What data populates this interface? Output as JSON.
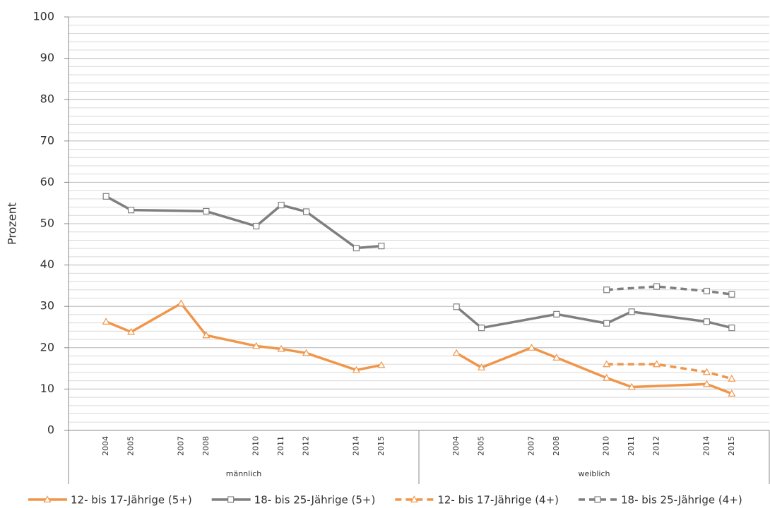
{
  "chart_data": {
    "type": "line",
    "ylabel": "Prozent",
    "ylim": [
      0,
      100
    ],
    "yticks": [
      0,
      10,
      20,
      30,
      40,
      50,
      60,
      70,
      80,
      90,
      100
    ],
    "minor_grid_step": 2,
    "grid": true,
    "legend": "bottom",
    "groups": [
      {
        "label": "männlich",
        "ticks": [
          2004,
          2005,
          2007,
          2008,
          2010,
          2011,
          2012,
          2014,
          2015
        ]
      },
      {
        "label": "weiblich",
        "ticks": [
          2004,
          2005,
          2007,
          2008,
          2010,
          2011,
          2012,
          2014,
          2015
        ]
      }
    ],
    "xlim": [
      2002.5,
      2016.5
    ],
    "series": [
      {
        "name": "12- bis 17-Jährige (5+)",
        "color": "#f0964a",
        "dashed": false,
        "marker": "triangle",
        "groups": [
          {
            "x": [
              2004,
              2005,
              2007,
              2008,
              2010,
              2011,
              2012,
              2014,
              2015
            ],
            "values": [
              26.3,
              23.8,
              30.7,
              23.0,
              20.4,
              19.7,
              18.7,
              14.6,
              15.8
            ]
          },
          {
            "x": [
              2004,
              2005,
              2007,
              2008,
              2010,
              2011,
              2014,
              2015
            ],
            "values": [
              18.7,
              15.2,
              20.0,
              17.6,
              12.7,
              10.5,
              11.2,
              8.9
            ]
          }
        ]
      },
      {
        "name": "18- bis 25-Jährige (5+)",
        "color": "#7f7f7f",
        "dashed": false,
        "marker": "square",
        "groups": [
          {
            "x": [
              2004,
              2005,
              2008,
              2010,
              2011,
              2012,
              2014,
              2015
            ],
            "values": [
              56.6,
              53.3,
              53.0,
              49.4,
              54.5,
              52.9,
              44.1,
              44.6
            ]
          },
          {
            "x": [
              2004,
              2005,
              2008,
              2010,
              2011,
              2014,
              2015
            ],
            "values": [
              29.9,
              24.8,
              28.1,
              25.9,
              28.7,
              26.3,
              24.8
            ]
          }
        ]
      },
      {
        "name": "12- bis 17-Jährige (4+)",
        "color": "#f0964a",
        "dashed": true,
        "marker": "triangle",
        "groups": [
          {
            "x": [],
            "values": []
          },
          {
            "x": [
              2010,
              2012,
              2014,
              2015
            ],
            "values": [
              16.0,
              16.0,
              14.1,
              12.5
            ]
          }
        ]
      },
      {
        "name": "18- bis 25-Jährige (4+)",
        "color": "#7f7f7f",
        "dashed": true,
        "marker": "square",
        "groups": [
          {
            "x": [],
            "values": []
          },
          {
            "x": [
              2010,
              2012,
              2014,
              2015
            ],
            "values": [
              34.0,
              34.8,
              33.7,
              32.9
            ]
          }
        ]
      }
    ]
  }
}
